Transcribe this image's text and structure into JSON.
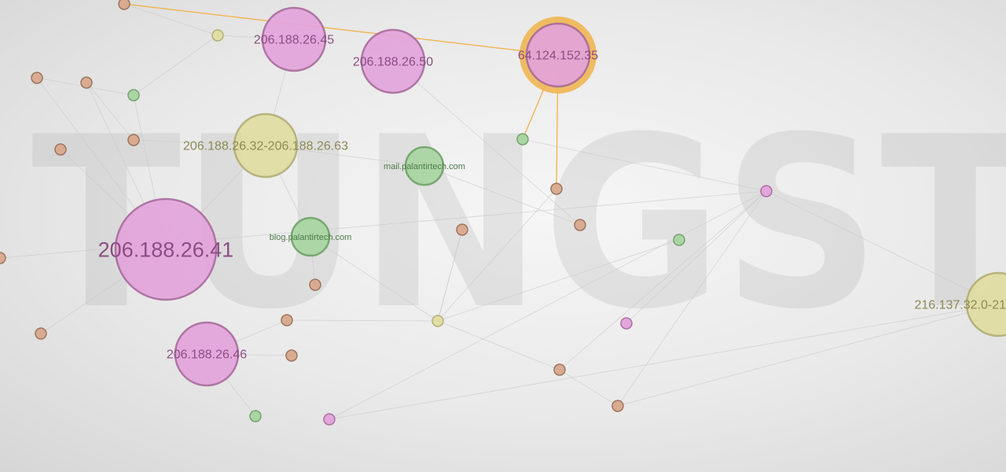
{
  "watermark": "TUNGSTEN",
  "colors": {
    "pink": "#e3a3dc",
    "pink_stroke": "#a86a9c",
    "yellow": "#e1dda0",
    "yellow_stroke": "#b2ad72",
    "green": "#a8d6a1",
    "green_stroke": "#6fa068",
    "brown": "#d9a98d",
    "brown_stroke": "#9a6f58",
    "highlight": "#f0b34a",
    "edge": "#c8c8c8",
    "edge_highlight": "#f0b34a"
  },
  "nodes": [
    {
      "id": "n-206-188-26-45",
      "label": "206.188.26.45",
      "kind": "pink",
      "size": "large"
    },
    {
      "id": "n-206-188-26-50",
      "label": "206.188.26.50",
      "kind": "pink",
      "size": "large"
    },
    {
      "id": "n-64-124-152-35",
      "label": "64.124.152.35",
      "kind": "pink",
      "size": "large",
      "selected": true
    },
    {
      "id": "n-206-188-26-32-63",
      "label": "206.188.26.32-206.188.26.63",
      "kind": "yellow",
      "size": "large"
    },
    {
      "id": "n-mail",
      "label": "mail.palantirtech.com",
      "kind": "green",
      "size": "medium"
    },
    {
      "id": "n-blog",
      "label": "blog.palantirtech.com",
      "kind": "green",
      "size": "medium"
    },
    {
      "id": "n-206-188-26-41",
      "label": "206.188.26.41",
      "kind": "pink",
      "size": "huge"
    },
    {
      "id": "n-206-188-26-46",
      "label": "206.188.26.46",
      "kind": "pink",
      "size": "large"
    },
    {
      "id": "n-216-137-32",
      "label": "216.137.32.0-21",
      "kind": "yellow",
      "size": "large"
    },
    {
      "id": "s1",
      "kind": "brown"
    },
    {
      "id": "s2",
      "kind": "yellow"
    },
    {
      "id": "s3",
      "kind": "brown"
    },
    {
      "id": "s4",
      "kind": "brown"
    },
    {
      "id": "s5",
      "kind": "green"
    },
    {
      "id": "s6",
      "kind": "brown"
    },
    {
      "id": "s7",
      "kind": "brown"
    },
    {
      "id": "s8",
      "kind": "green"
    },
    {
      "id": "s9",
      "kind": "brown"
    },
    {
      "id": "s10",
      "kind": "brown"
    },
    {
      "id": "s11",
      "kind": "green"
    },
    {
      "id": "s12",
      "kind": "pink"
    },
    {
      "id": "s13",
      "kind": "brown"
    },
    {
      "id": "s14",
      "kind": "brown"
    },
    {
      "id": "s15",
      "kind": "brown"
    },
    {
      "id": "s16",
      "kind": "yellow"
    },
    {
      "id": "s17",
      "kind": "pink"
    },
    {
      "id": "s18",
      "kind": "brown"
    },
    {
      "id": "s19",
      "kind": "brown"
    },
    {
      "id": "s20",
      "kind": "green"
    },
    {
      "id": "s21",
      "kind": "brown"
    },
    {
      "id": "s22",
      "kind": "pink"
    },
    {
      "id": "s23",
      "kind": "brown"
    },
    {
      "id": "s24",
      "kind": "brown"
    }
  ],
  "edges": [
    [
      "n-64-124-152-35",
      "s7",
      "highlight"
    ],
    [
      "n-64-124-152-35",
      "s8",
      "highlight"
    ],
    [
      "s1",
      "n-64-124-152-35",
      "highlight"
    ],
    [
      "n-206-188-26-41",
      "n-206-188-26-32-63"
    ],
    [
      "n-206-188-26-41",
      "s3"
    ],
    [
      "n-206-188-26-41",
      "s4"
    ],
    [
      "n-206-188-26-41",
      "s23"
    ],
    [
      "n-206-188-26-41",
      "s21"
    ],
    [
      "n-206-188-26-41",
      "s5"
    ],
    [
      "n-206-188-26-46",
      "s14"
    ],
    [
      "n-206-188-26-46",
      "s15"
    ],
    [
      "n-206-188-26-46",
      "s20"
    ],
    [
      "n-206-188-26-32-63",
      "s6"
    ],
    [
      "n-206-188-26-32-63",
      "n-206-188-26-45"
    ],
    [
      "n-206-188-26-32-63",
      "n-blog"
    ],
    [
      "n-206-188-26-32-63",
      "n-mail"
    ],
    [
      "n-mail",
      "s10"
    ],
    [
      "n-blog",
      "s13"
    ],
    [
      "n-blog",
      "s16"
    ],
    [
      "s16",
      "s7"
    ],
    [
      "s16",
      "s9"
    ],
    [
      "s16",
      "s11"
    ],
    [
      "s16",
      "s14"
    ],
    [
      "s16",
      "s18"
    ],
    [
      "s12",
      "s19"
    ],
    [
      "s12",
      "s17"
    ],
    [
      "s12",
      "s22"
    ],
    [
      "s12",
      "s18"
    ],
    [
      "s12",
      "s24"
    ],
    [
      "s12",
      "n-216-137-32"
    ],
    [
      "s19",
      "n-216-137-32"
    ],
    [
      "s22",
      "n-216-137-32"
    ],
    [
      "n-206-188-26-50",
      "s10"
    ],
    [
      "n-206-188-26-45",
      "s2"
    ],
    [
      "s2",
      "s5"
    ],
    [
      "s1",
      "s2"
    ],
    [
      "s3",
      "s5"
    ],
    [
      "s4",
      "s6"
    ],
    [
      "s18",
      "s19"
    ],
    [
      "s9",
      "s16"
    ],
    [
      "s8",
      "s12"
    ]
  ]
}
